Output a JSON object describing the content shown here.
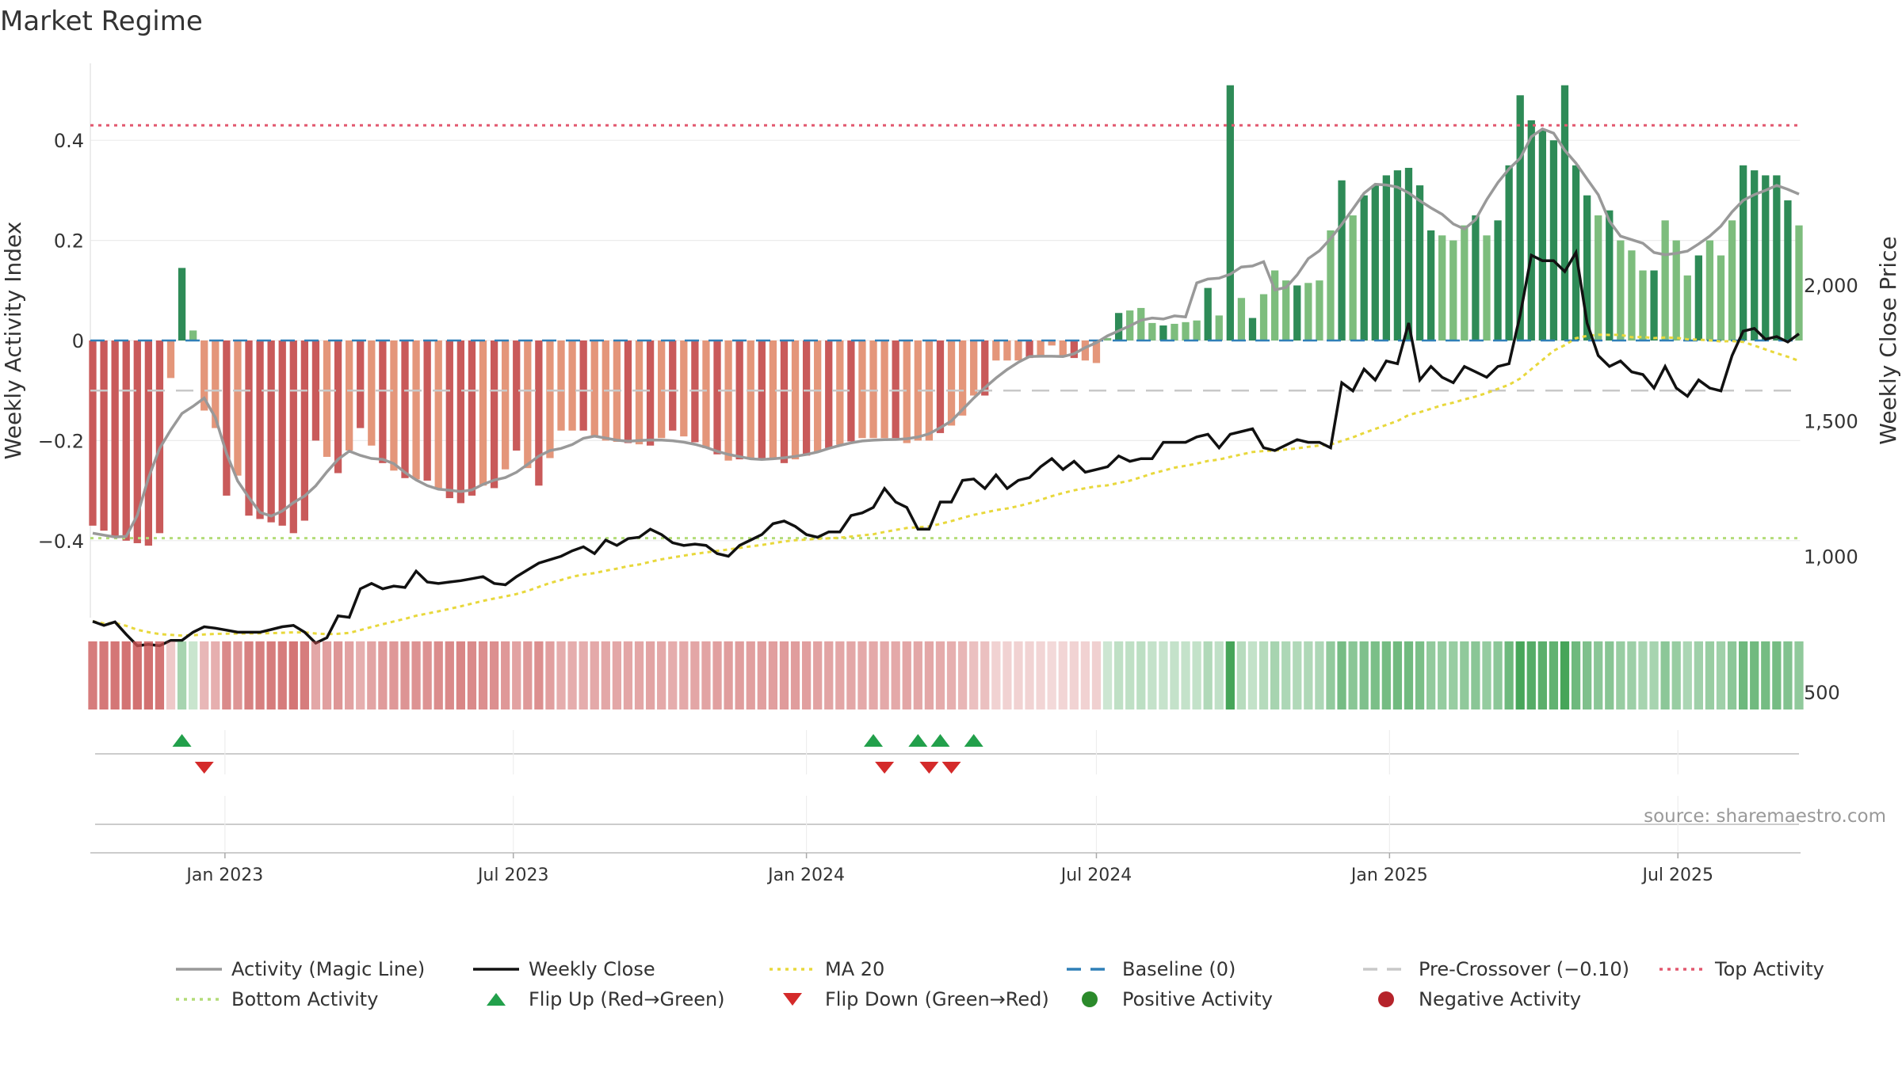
{
  "chart_data": {
    "type": "bar",
    "title": "Market Regime",
    "source": "source: sharemaestro.com",
    "y_left": {
      "label": "Weekly Activity Index",
      "ylim": [
        -0.55,
        0.55
      ],
      "ticks": [
        0.4,
        0.2,
        0,
        -0.2,
        -0.4
      ],
      "tick_labels": [
        "0.4",
        "0.2",
        "0",
        "−0.2",
        "−0.4"
      ]
    },
    "y_right": {
      "label": "Weekly Close Price",
      "ylim": [
        300,
        2450
      ],
      "ticks": [
        2000,
        1500,
        1000,
        500
      ],
      "tick_labels": [
        "2,000",
        "1,500",
        "1,000",
        "500"
      ]
    },
    "x": {
      "start": "2022-10-10",
      "weeks": 154,
      "ticks": [
        "2023-01-01",
        "2023-07-01",
        "2024-01-01",
        "2024-07-01",
        "2025-01-01",
        "2025-07-01"
      ],
      "tick_labels": [
        "Jan 2023",
        "Jul 2023",
        "Jan 2024",
        "Jul 2024",
        "Jan 2025",
        "Jul 2025"
      ]
    },
    "reference_lines": {
      "top_activity": 0.43,
      "bottom_activity": -0.395,
      "pre_crossover": -0.1,
      "baseline": 0
    },
    "activity_keypoints": [
      [
        0,
        -0.37
      ],
      [
        3,
        -0.4
      ],
      [
        5,
        -0.41
      ],
      [
        6,
        -0.385
      ],
      [
        7,
        -0.075
      ],
      [
        8,
        0.145
      ],
      [
        9,
        0.02
      ],
      [
        10,
        -0.14
      ],
      [
        11,
        -0.175
      ],
      [
        12,
        -0.31
      ],
      [
        13,
        -0.27
      ],
      [
        14,
        -0.35
      ],
      [
        17,
        -0.37
      ],
      [
        18,
        -0.385
      ],
      [
        19,
        -0.36
      ],
      [
        20,
        -0.2
      ],
      [
        22,
        -0.265
      ],
      [
        24,
        -0.175
      ],
      [
        26,
        -0.245
      ],
      [
        28,
        -0.275
      ],
      [
        30,
        -0.28
      ],
      [
        32,
        -0.315
      ],
      [
        33,
        -0.325
      ],
      [
        34,
        -0.31
      ],
      [
        35,
        -0.29
      ],
      [
        36,
        -0.295
      ],
      [
        38,
        -0.22
      ],
      [
        40,
        -0.29
      ],
      [
        42,
        -0.18
      ],
      [
        44,
        -0.18
      ],
      [
        46,
        -0.2
      ],
      [
        50,
        -0.21
      ],
      [
        52,
        -0.18
      ],
      [
        55,
        -0.215
      ],
      [
        57,
        -0.24
      ],
      [
        59,
        -0.235
      ],
      [
        61,
        -0.235
      ],
      [
        62,
        -0.245
      ],
      [
        64,
        -0.23
      ],
      [
        66,
        -0.215
      ],
      [
        69,
        -0.195
      ],
      [
        72,
        -0.195
      ],
      [
        73,
        -0.205
      ],
      [
        74,
        -0.2
      ],
      [
        75,
        -0.2
      ],
      [
        77,
        -0.17
      ],
      [
        78,
        -0.15
      ],
      [
        79,
        -0.11
      ],
      [
        80,
        -0.11
      ],
      [
        81,
        -0.04
      ],
      [
        83,
        -0.04
      ],
      [
        85,
        -0.03
      ],
      [
        86,
        -0.01
      ],
      [
        87,
        -0.03
      ],
      [
        89,
        -0.04
      ],
      [
        90,
        -0.045
      ],
      [
        92,
        0.055
      ],
      [
        94,
        0.065
      ],
      [
        95,
        0.035
      ],
      [
        96,
        0.03
      ],
      [
        99,
        0.04
      ],
      [
        100,
        0.105
      ],
      [
        101,
        0.05
      ],
      [
        102,
        0.51
      ],
      [
        103,
        0.085
      ],
      [
        104,
        0.045
      ],
      [
        106,
        0.14
      ],
      [
        107,
        0.12
      ],
      [
        108,
        0.11
      ],
      [
        110,
        0.12
      ],
      [
        112,
        0.32
      ],
      [
        113,
        0.25
      ],
      [
        114,
        0.29
      ],
      [
        116,
        0.33
      ],
      [
        117,
        0.34
      ],
      [
        118,
        0.345
      ],
      [
        119,
        0.31
      ],
      [
        120,
        0.22
      ],
      [
        122,
        0.2
      ],
      [
        123,
        0.23
      ],
      [
        124,
        0.25
      ],
      [
        125,
        0.21
      ],
      [
        126,
        0.24
      ],
      [
        127,
        0.35
      ],
      [
        128,
        0.49
      ],
      [
        129,
        0.44
      ],
      [
        130,
        0.42
      ],
      [
        131,
        0.4
      ],
      [
        132,
        0.51
      ],
      [
        133,
        0.35
      ],
      [
        134,
        0.29
      ],
      [
        135,
        0.25
      ],
      [
        136,
        0.26
      ],
      [
        137,
        0.2
      ],
      [
        138,
        0.18
      ],
      [
        139,
        0.14
      ],
      [
        140,
        0.14
      ],
      [
        141,
        0.24
      ],
      [
        142,
        0.2
      ],
      [
        143,
        0.13
      ],
      [
        144,
        0.17
      ],
      [
        145,
        0.2
      ],
      [
        146,
        0.17
      ],
      [
        147,
        0.24
      ],
      [
        148,
        0.35
      ],
      [
        149,
        0.34
      ],
      [
        150,
        0.33
      ],
      [
        151,
        0.33
      ],
      [
        152,
        0.28
      ],
      [
        153,
        0.23
      ]
    ],
    "close_keypoints": [
      [
        0,
        760
      ],
      [
        1,
        745
      ],
      [
        2,
        758
      ],
      [
        3,
        712
      ],
      [
        4,
        670
      ],
      [
        5,
        675
      ],
      [
        6,
        670
      ],
      [
        7,
        690
      ],
      [
        8,
        690
      ],
      [
        9,
        720
      ],
      [
        10,
        740
      ],
      [
        11,
        735
      ],
      [
        13,
        720
      ],
      [
        15,
        720
      ],
      [
        17,
        740
      ],
      [
        18,
        745
      ],
      [
        19,
        720
      ],
      [
        20,
        680
      ],
      [
        21,
        700
      ],
      [
        22,
        780
      ],
      [
        23,
        775
      ],
      [
        24,
        880
      ],
      [
        25,
        900
      ],
      [
        26,
        880
      ],
      [
        27,
        890
      ],
      [
        28,
        885
      ],
      [
        29,
        945
      ],
      [
        30,
        905
      ],
      [
        31,
        900
      ],
      [
        33,
        910
      ],
      [
        35,
        925
      ],
      [
        36,
        900
      ],
      [
        37,
        895
      ],
      [
        38,
        925
      ],
      [
        40,
        975
      ],
      [
        42,
        1000
      ],
      [
        43,
        1020
      ],
      [
        44,
        1035
      ],
      [
        45,
        1010
      ],
      [
        46,
        1060
      ],
      [
        47,
        1040
      ],
      [
        48,
        1065
      ],
      [
        49,
        1070
      ],
      [
        50,
        1100
      ],
      [
        51,
        1080
      ],
      [
        52,
        1050
      ],
      [
        53,
        1040
      ],
      [
        54,
        1045
      ],
      [
        55,
        1040
      ],
      [
        56,
        1010
      ],
      [
        57,
        1000
      ],
      [
        58,
        1040
      ],
      [
        59,
        1060
      ],
      [
        60,
        1080
      ],
      [
        61,
        1120
      ],
      [
        62,
        1130
      ],
      [
        63,
        1110
      ],
      [
        64,
        1080
      ],
      [
        65,
        1070
      ],
      [
        66,
        1090
      ],
      [
        67,
        1090
      ],
      [
        68,
        1150
      ],
      [
        69,
        1160
      ],
      [
        70,
        1180
      ],
      [
        71,
        1250
      ],
      [
        72,
        1200
      ],
      [
        73,
        1180
      ],
      [
        74,
        1100
      ],
      [
        75,
        1100
      ],
      [
        76,
        1200
      ],
      [
        77,
        1200
      ],
      [
        78,
        1280
      ],
      [
        79,
        1285
      ],
      [
        80,
        1250
      ],
      [
        81,
        1300
      ],
      [
        82,
        1250
      ],
      [
        83,
        1280
      ],
      [
        84,
        1290
      ],
      [
        85,
        1330
      ],
      [
        86,
        1360
      ],
      [
        87,
        1320
      ],
      [
        88,
        1350
      ],
      [
        89,
        1310
      ],
      [
        90,
        1320
      ],
      [
        91,
        1330
      ],
      [
        92,
        1370
      ],
      [
        93,
        1350
      ],
      [
        94,
        1360
      ],
      [
        95,
        1360
      ],
      [
        96,
        1420
      ],
      [
        97,
        1420
      ],
      [
        98,
        1420
      ],
      [
        99,
        1440
      ],
      [
        100,
        1450
      ],
      [
        101,
        1400
      ],
      [
        102,
        1450
      ],
      [
        103,
        1460
      ],
      [
        104,
        1470
      ],
      [
        105,
        1400
      ],
      [
        106,
        1390
      ],
      [
        108,
        1430
      ],
      [
        109,
        1420
      ],
      [
        110,
        1420
      ],
      [
        111,
        1400
      ],
      [
        112,
        1640
      ],
      [
        113,
        1610
      ],
      [
        114,
        1690
      ],
      [
        115,
        1650
      ],
      [
        116,
        1720
      ],
      [
        117,
        1710
      ],
      [
        118,
        1860
      ],
      [
        119,
        1650
      ],
      [
        120,
        1700
      ],
      [
        121,
        1660
      ],
      [
        122,
        1640
      ],
      [
        123,
        1700
      ],
      [
        125,
        1660
      ],
      [
        126,
        1700
      ],
      [
        127,
        1710
      ],
      [
        128,
        1890
      ],
      [
        129,
        2110
      ],
      [
        130,
        2090
      ],
      [
        131,
        2090
      ],
      [
        132,
        2050
      ],
      [
        133,
        2120
      ],
      [
        134,
        1860
      ],
      [
        135,
        1740
      ],
      [
        136,
        1700
      ],
      [
        137,
        1720
      ],
      [
        138,
        1680
      ],
      [
        139,
        1670
      ],
      [
        140,
        1620
      ],
      [
        141,
        1700
      ],
      [
        142,
        1620
      ],
      [
        143,
        1590
      ],
      [
        144,
        1650
      ],
      [
        145,
        1620
      ],
      [
        146,
        1610
      ],
      [
        147,
        1740
      ],
      [
        148,
        1830
      ],
      [
        149,
        1840
      ],
      [
        150,
        1800
      ],
      [
        151,
        1810
      ],
      [
        152,
        1790
      ],
      [
        153,
        1820
      ]
    ],
    "flip_up_weeks": [
      8,
      70,
      74,
      76,
      79
    ],
    "flip_down_weeks": [
      10,
      71,
      75,
      77
    ],
    "legend": [
      {
        "label": "Activity (Magic Line)",
        "symbol": "line",
        "color": "#999999"
      },
      {
        "label": "Weekly Close",
        "symbol": "line",
        "color": "#111111"
      },
      {
        "label": "MA 20",
        "symbol": "dotted",
        "color": "#e8d83c"
      },
      {
        "label": "Baseline (0)",
        "symbol": "dashed",
        "color": "#2f7fb7"
      },
      {
        "label": "Pre-Crossover (−0.10)",
        "symbol": "dashed",
        "color": "#c8c8c8"
      },
      {
        "label": "Top Activity",
        "symbol": "dotted",
        "color": "#e2586f"
      },
      {
        "label": "Bottom Activity",
        "symbol": "dotted",
        "color": "#b3dc78"
      },
      {
        "label": "Flip Up (Red→Green)",
        "symbol": "triangle-up",
        "color": "#22a04b"
      },
      {
        "label": "Flip Down (Green→Red)",
        "symbol": "triangle-down",
        "color": "#d42a2a"
      },
      {
        "label": "Positive Activity",
        "symbol": "circle",
        "color": "#2b8a2b"
      },
      {
        "label": "Negative Activity",
        "symbol": "circle",
        "color": "#b5232a"
      }
    ],
    "colors": {
      "neg_strong": "#c95a5a",
      "neg_light": "#e4967a",
      "pos_strong": "#2e8b57",
      "pos_light": "#7dbd7d",
      "close": "#111111",
      "magic": "#999999",
      "ma": "#e8d83c",
      "baseline": "#2f7fb7",
      "pre": "#c8c8c8",
      "top": "#e2586f",
      "bottom": "#b3dc78",
      "up": "#22a04b",
      "down": "#d42a2a"
    }
  }
}
